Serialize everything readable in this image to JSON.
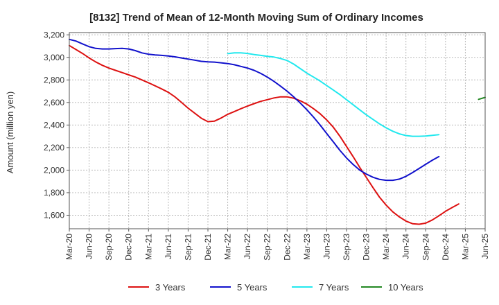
{
  "chart_data": {
    "type": "line",
    "title": "[8132]  Trend of Mean of 12-Month Moving Sum of Ordinary Incomes",
    "xlabel": "",
    "ylabel": "Amount (million yen)",
    "ylim": [
      1480,
      3220
    ],
    "yticks": [
      1600,
      1800,
      2000,
      2200,
      2400,
      2600,
      2800,
      3000,
      3200
    ],
    "ytick_labels": [
      "1,600",
      "1,800",
      "2,000",
      "2,200",
      "2,400",
      "2,600",
      "2,800",
      "3,000",
      "3,200"
    ],
    "x_tick_labels": [
      "Mar-20",
      "Jun-20",
      "Sep-20",
      "Dec-20",
      "Mar-21",
      "Jun-21",
      "Sep-21",
      "Dec-21",
      "Mar-22",
      "Jun-22",
      "Sep-22",
      "Dec-22",
      "Mar-23",
      "Jun-23",
      "Sep-23",
      "Dec-23",
      "Mar-24",
      "Jun-24",
      "Sep-24",
      "Dec-24",
      "Mar-25",
      "Jun-25"
    ],
    "legend_position": "bottom",
    "grid": true,
    "series": [
      {
        "name": "3 Years",
        "color": "#dd1111",
        "start_month": 0,
        "values": [
          3105,
          3070,
          3035,
          2995,
          2960,
          2930,
          2905,
          2885,
          2865,
          2845,
          2825,
          2800,
          2775,
          2748,
          2720,
          2690,
          2650,
          2600,
          2550,
          2505,
          2460,
          2430,
          2435,
          2462,
          2495,
          2520,
          2545,
          2568,
          2590,
          2610,
          2625,
          2640,
          2650,
          2650,
          2638,
          2615,
          2585,
          2545,
          2500,
          2445,
          2380,
          2300,
          2210,
          2120,
          2025,
          1935,
          1845,
          1760,
          1690,
          1630,
          1585,
          1548,
          1525,
          1520,
          1530,
          1558,
          1595,
          1635,
          1668,
          1700
        ]
      },
      {
        "name": "5 Years",
        "color": "#1111cc",
        "start_month": 0,
        "values": [
          3160,
          3145,
          3120,
          3095,
          3080,
          3075,
          3075,
          3078,
          3080,
          3075,
          3060,
          3040,
          3028,
          3022,
          3018,
          3012,
          3005,
          2995,
          2985,
          2975,
          2965,
          2960,
          2958,
          2952,
          2945,
          2935,
          2920,
          2905,
          2885,
          2858,
          2825,
          2788,
          2745,
          2700,
          2650,
          2595,
          2535,
          2470,
          2400,
          2325,
          2250,
          2175,
          2108,
          2050,
          2000,
          1965,
          1937,
          1918,
          1910,
          1910,
          1920,
          1945,
          1978,
          2015,
          2052,
          2088,
          2120
        ]
      },
      {
        "name": "7 Years",
        "color": "#22e8ee",
        "start_month": 24,
        "values": [
          3033,
          3040,
          3040,
          3035,
          3025,
          3018,
          3010,
          3003,
          2990,
          2972,
          2940,
          2900,
          2860,
          2825,
          2790,
          2750,
          2710,
          2670,
          2625,
          2580,
          2535,
          2490,
          2450,
          2410,
          2375,
          2345,
          2322,
          2307,
          2300,
          2300,
          2302,
          2308,
          2315
        ]
      },
      {
        "name": "10 Years",
        "color": "#228822",
        "start_month": 62,
        "values": [
          2628,
          2645
        ]
      }
    ]
  }
}
